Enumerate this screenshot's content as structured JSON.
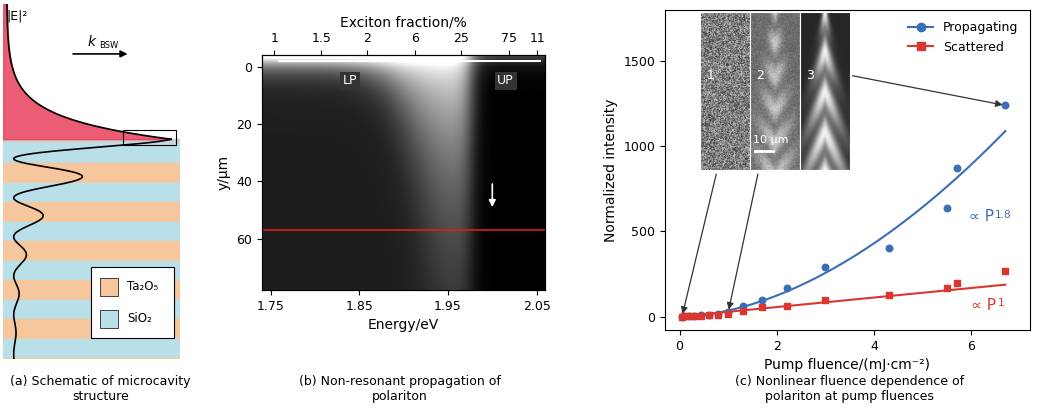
{
  "chart_data": [
    {
      "type": "diagram",
      "caption": "(a) Schematic of microcavity\nstructure",
      "field_label": "|E|²",
      "wavevector": {
        "text": "k",
        "subscript": "BSW"
      },
      "field_color": "#e8415c",
      "layers": [
        {
          "name": "Ta₂O₅",
          "color": "#f6c79c"
        },
        {
          "name": "SiO₂",
          "color": "#b9dfe9"
        }
      ]
    },
    {
      "type": "image",
      "caption": "(b) Non-resonant propagation of\npolariton",
      "xlabel": "Energy/eV",
      "ylabel": "y/μm",
      "top_label": "Exciton fraction/%",
      "xlim": [
        1.74,
        2.06
      ],
      "ylim": [
        78,
        -4
      ],
      "xticks": [
        1.75,
        1.85,
        1.95,
        2.05
      ],
      "yticks": [
        0,
        20,
        40,
        60
      ],
      "top_ticks": [
        {
          "value": 1.754,
          "label": "1"
        },
        {
          "value": 1.807,
          "label": "1.5"
        },
        {
          "value": 1.859,
          "label": "2"
        },
        {
          "value": 1.913,
          "label": "6"
        },
        {
          "value": 1.965,
          "label": "25"
        },
        {
          "value": 2.019,
          "label": "75"
        },
        {
          "value": 2.051,
          "label": "11"
        }
      ],
      "branch_labels": [
        "LP",
        "UP"
      ],
      "marked_position": 57,
      "color": "#d62020"
    },
    {
      "type": "scatter",
      "caption": "(c) Nonlinear fluence dependence of\npolariton at pump fluences",
      "xlabel": "Pump fluence/(mJ·cm⁻²)",
      "ylabel": "Normalized intensity",
      "xlim": [
        -0.3,
        7.2
      ],
      "ylim": [
        -80,
        1800
      ],
      "xticks": [
        0,
        2,
        4,
        6
      ],
      "yticks": [
        0,
        500,
        1000,
        1500
      ],
      "legend": "upper right",
      "x": [
        0.05,
        0.1,
        0.2,
        0.3,
        0.45,
        0.6,
        0.8,
        1.0,
        1.3,
        1.7,
        2.2,
        3.0,
        4.3,
        5.5,
        5.7,
        6.7
      ],
      "series": [
        {
          "name": "Propagating",
          "color": "#3a6fb5",
          "marker": "o",
          "values": [
            0,
            1,
            3,
            5,
            8,
            12,
            18,
            25,
            60,
            100,
            165,
            290,
            400,
            640,
            870,
            1240
          ],
          "fit": {
            "coefficient": 35.5,
            "exponent": 1.8
          }
        },
        {
          "name": "Scattered",
          "color": "#d9372f",
          "marker": "s",
          "values": [
            0,
            1,
            2,
            3,
            5,
            8,
            12,
            18,
            30,
            55,
            65,
            100,
            125,
            170,
            195,
            270
          ],
          "fit": {
            "coefficient": 28,
            "exponent": 1
          }
        }
      ],
      "inset_labels": [
        "1",
        "2",
        "3"
      ],
      "scale_bar": "10 μm",
      "fit_symbol": "∝ P"
    }
  ]
}
